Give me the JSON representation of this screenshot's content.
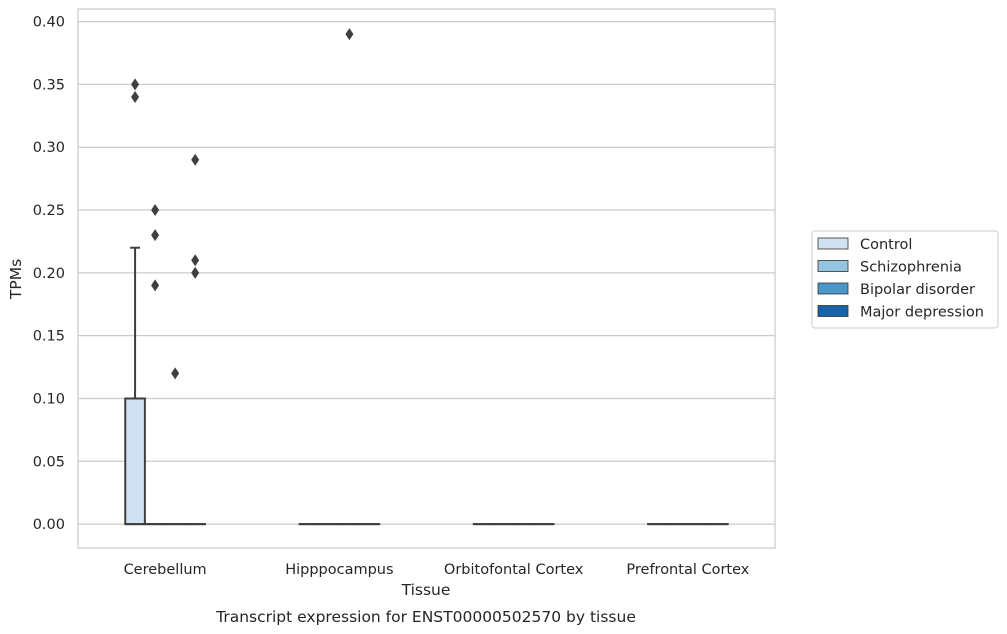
{
  "chart_data": {
    "type": "box",
    "title": "",
    "xlabel": "Tissue",
    "ylabel": "TPMs",
    "caption": "Transcript expression for ENST00000502570 by tissue",
    "ylim": [
      -0.019,
      0.41
    ],
    "yticks": [
      0.0,
      0.05,
      0.1,
      0.15,
      0.2,
      0.25,
      0.3,
      0.35,
      0.4
    ],
    "ytick_labels": [
      "0.00",
      "0.05",
      "0.10",
      "0.15",
      "0.20",
      "0.25",
      "0.30",
      "0.35",
      "0.40"
    ],
    "grid": "horizontal",
    "legend_position": "right",
    "categories": [
      "Cerebellum",
      "Hipppocampus",
      "Orbitofontal Cortex",
      "Prefrontal Cortex"
    ],
    "series": [
      {
        "name": "Control",
        "color": "#d0e1f2",
        "boxes": [
          {
            "category": "Cerebellum",
            "q1": 0.0,
            "median": 0.0,
            "q3": 0.1,
            "whisker_low": 0.0,
            "whisker_high": 0.22,
            "outliers": [
              0.34,
              0.35
            ]
          },
          {
            "category": "Hipppocampus",
            "q1": 0.0,
            "median": 0.0,
            "q3": 0.0,
            "whisker_low": 0.0,
            "whisker_high": 0.0,
            "outliers": []
          },
          {
            "category": "Orbitofontal Cortex",
            "q1": 0.0,
            "median": 0.0,
            "q3": 0.0,
            "whisker_low": 0.0,
            "whisker_high": 0.0,
            "outliers": []
          },
          {
            "category": "Prefrontal Cortex",
            "q1": 0.0,
            "median": 0.0,
            "q3": 0.0,
            "whisker_low": 0.0,
            "whisker_high": 0.0,
            "outliers": []
          }
        ]
      },
      {
        "name": "Schizophrenia",
        "color": "#94c4df",
        "boxes": [
          {
            "category": "Cerebellum",
            "q1": 0.0,
            "median": 0.0,
            "q3": 0.0,
            "whisker_low": 0.0,
            "whisker_high": 0.0,
            "outliers": [
              0.19,
              0.23,
              0.25
            ]
          },
          {
            "category": "Hipppocampus",
            "q1": 0.0,
            "median": 0.0,
            "q3": 0.0,
            "whisker_low": 0.0,
            "whisker_high": 0.0,
            "outliers": []
          },
          {
            "category": "Orbitofontal Cortex",
            "q1": 0.0,
            "median": 0.0,
            "q3": 0.0,
            "whisker_low": 0.0,
            "whisker_high": 0.0,
            "outliers": []
          },
          {
            "category": "Prefrontal Cortex",
            "q1": 0.0,
            "median": 0.0,
            "q3": 0.0,
            "whisker_low": 0.0,
            "whisker_high": 0.0,
            "outliers": []
          }
        ]
      },
      {
        "name": "Bipolar disorder",
        "color": "#4a98c9",
        "boxes": [
          {
            "category": "Cerebellum",
            "q1": 0.0,
            "median": 0.0,
            "q3": 0.0,
            "whisker_low": 0.0,
            "whisker_high": 0.0,
            "outliers": [
              0.12
            ]
          },
          {
            "category": "Hipppocampus",
            "q1": 0.0,
            "median": 0.0,
            "q3": 0.0,
            "whisker_low": 0.0,
            "whisker_high": 0.0,
            "outliers": [
              0.39
            ]
          },
          {
            "category": "Orbitofontal Cortex",
            "q1": 0.0,
            "median": 0.0,
            "q3": 0.0,
            "whisker_low": 0.0,
            "whisker_high": 0.0,
            "outliers": []
          },
          {
            "category": "Prefrontal Cortex",
            "q1": 0.0,
            "median": 0.0,
            "q3": 0.0,
            "whisker_low": 0.0,
            "whisker_high": 0.0,
            "outliers": []
          }
        ]
      },
      {
        "name": "Major depression",
        "color": "#1764ab",
        "boxes": [
          {
            "category": "Cerebellum",
            "q1": 0.0,
            "median": 0.0,
            "q3": 0.0,
            "whisker_low": 0.0,
            "whisker_high": 0.0,
            "outliers": [
              0.2,
              0.21,
              0.29
            ]
          },
          {
            "category": "Hipppocampus",
            "q1": 0.0,
            "median": 0.0,
            "q3": 0.0,
            "whisker_low": 0.0,
            "whisker_high": 0.0,
            "outliers": []
          },
          {
            "category": "Orbitofontal Cortex",
            "q1": 0.0,
            "median": 0.0,
            "q3": 0.0,
            "whisker_low": 0.0,
            "whisker_high": 0.0,
            "outliers": []
          },
          {
            "category": "Prefrontal Cortex",
            "q1": 0.0,
            "median": 0.0,
            "q3": 0.0,
            "whisker_low": 0.0,
            "whisker_high": 0.0,
            "outliers": []
          }
        ]
      }
    ],
    "legend": [
      "Control",
      "Schizophrenia",
      "Bipolar disorder",
      "Major depression"
    ]
  }
}
